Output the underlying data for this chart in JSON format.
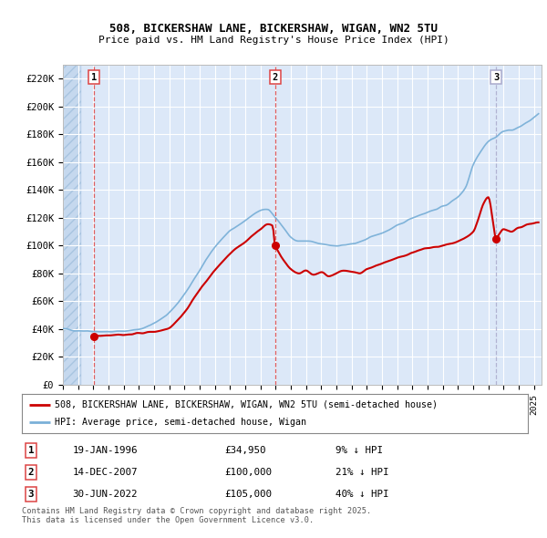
{
  "title1": "508, BICKERSHAW LANE, BICKERSHAW, WIGAN, WN2 5TU",
  "title2": "Price paid vs. HM Land Registry's House Price Index (HPI)",
  "ylim": [
    0,
    230000
  ],
  "yticks": [
    0,
    20000,
    40000,
    60000,
    80000,
    100000,
    120000,
    140000,
    160000,
    180000,
    200000,
    220000
  ],
  "ytick_labels": [
    "£0",
    "£20K",
    "£40K",
    "£60K",
    "£80K",
    "£100K",
    "£120K",
    "£140K",
    "£160K",
    "£180K",
    "£200K",
    "£220K"
  ],
  "xlim_start": 1994.0,
  "xlim_end": 2025.5,
  "background_color": "#ffffff",
  "plot_bg_color": "#dce8f8",
  "grid_color": "#ffffff",
  "sale_dates": [
    1996.05,
    2007.96,
    2022.5
  ],
  "sale_prices": [
    34950,
    100000,
    105000
  ],
  "sale_labels": [
    "1",
    "2",
    "3"
  ],
  "legend_line1": "508, BICKERSHAW LANE, BICKERSHAW, WIGAN, WN2 5TU (semi-detached house)",
  "legend_line2": "HPI: Average price, semi-detached house, Wigan",
  "table_rows": [
    [
      "1",
      "19-JAN-1996",
      "£34,950",
      "9% ↓ HPI"
    ],
    [
      "2",
      "14-DEC-2007",
      "£100,000",
      "21% ↓ HPI"
    ],
    [
      "3",
      "30-JUN-2022",
      "£105,000",
      "40% ↓ HPI"
    ]
  ],
  "footer": "Contains HM Land Registry data © Crown copyright and database right 2025.\nThis data is licensed under the Open Government Licence v3.0.",
  "red_color": "#cc0000",
  "blue_color": "#7ab0d8",
  "sale_marker_color": "#cc0000",
  "vline_color_red": "#dd4444",
  "vline_color_gray": "#aaaacc"
}
